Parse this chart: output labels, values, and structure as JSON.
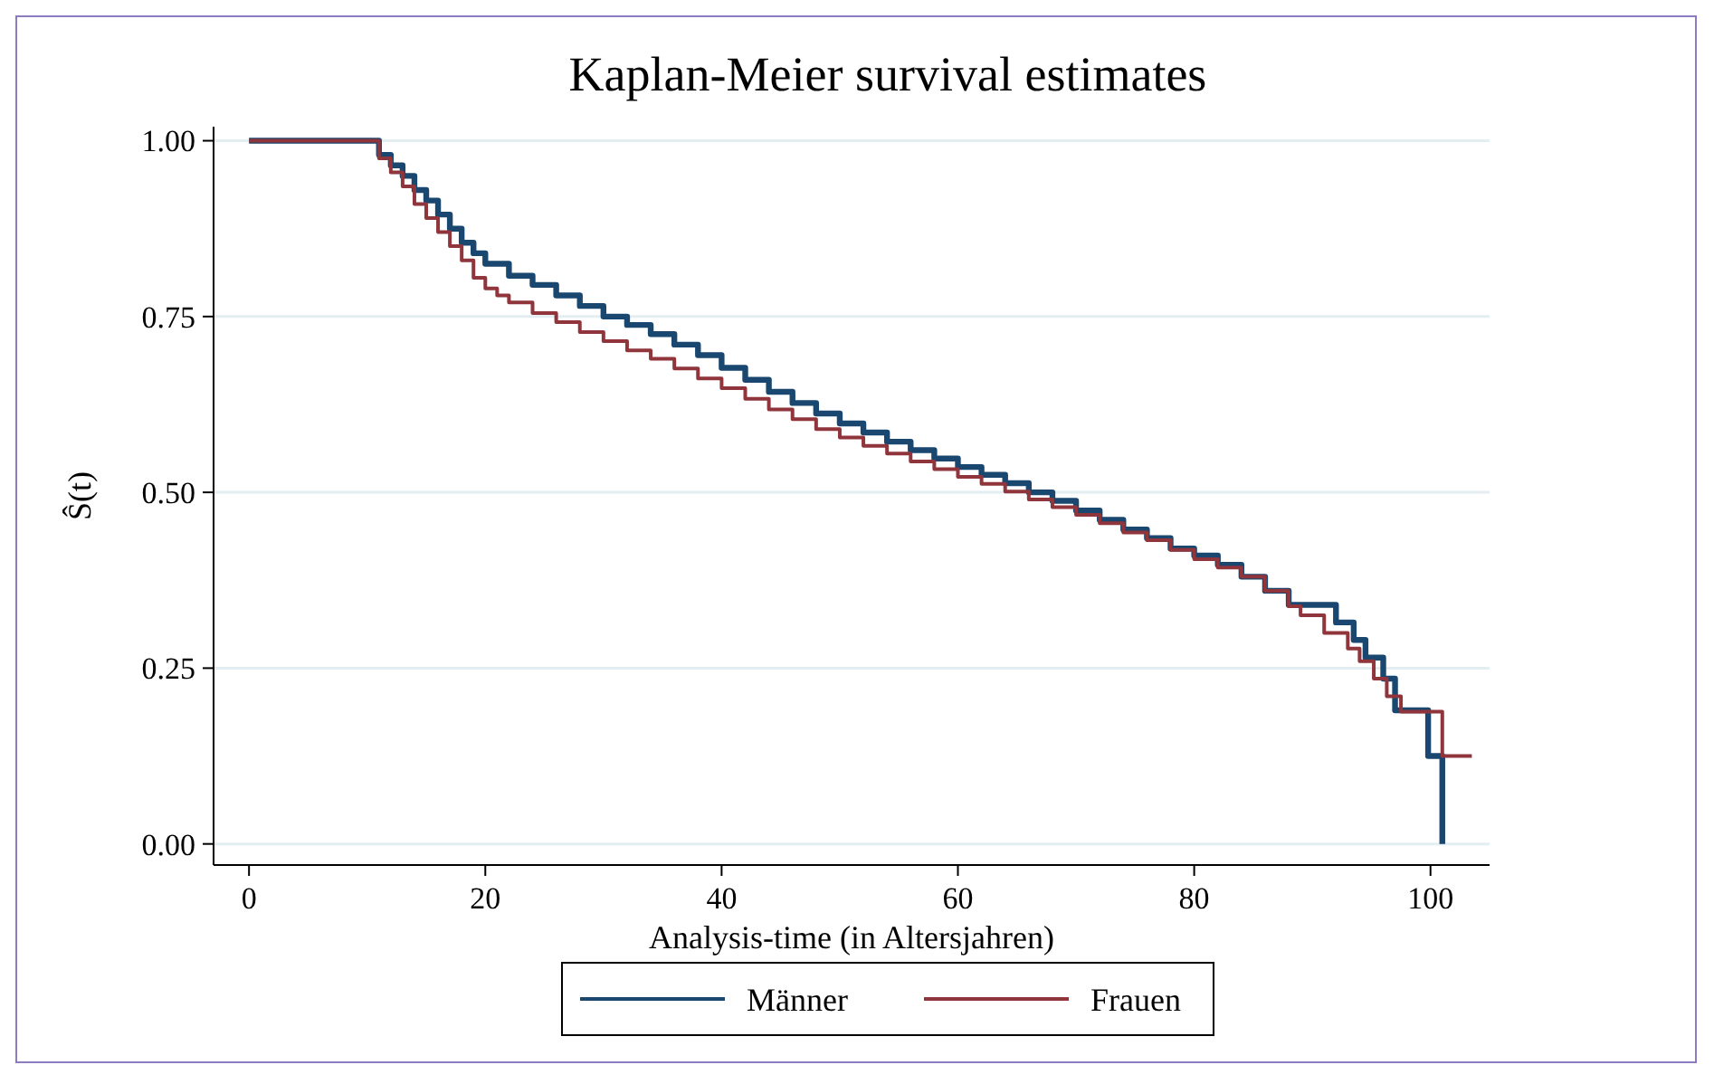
{
  "chart_data": {
    "type": "step",
    "title": "Kaplan-Meier survival estimates",
    "xlabel": "Analysis-time (in Altersjahren)",
    "ylabel": "Ŝ(t)",
    "xlim": [
      -3,
      105
    ],
    "ylim": [
      -0.03,
      1.02
    ],
    "xticks": [
      0,
      20,
      40,
      60,
      80,
      100
    ],
    "yticks": [
      {
        "value": 0,
        "label": "0.00"
      },
      {
        "value": 0.25,
        "label": "0.25"
      },
      {
        "value": 0.5,
        "label": "0.50"
      },
      {
        "value": 0.75,
        "label": "0.75"
      },
      {
        "value": 1,
        "label": "1.00"
      }
    ],
    "grid": "y",
    "legend": "bottom",
    "line_style": "solid",
    "marker": "none",
    "series": [
      {
        "name": "Männer",
        "color": "#1a476f",
        "x": [
          0,
          10,
          11,
          12,
          13,
          14,
          15,
          16,
          17,
          18,
          19,
          20,
          22,
          24,
          26,
          28,
          30,
          32,
          34,
          36,
          38,
          40,
          42,
          44,
          46,
          48,
          50,
          52,
          54,
          56,
          58,
          60,
          62,
          64,
          66,
          68,
          70,
          72,
          74,
          76,
          78,
          80,
          82,
          84,
          86,
          88,
          92,
          93.5,
          94.5,
          96,
          97,
          99.8,
          101
        ],
        "values": [
          1,
          1,
          0.98,
          0.965,
          0.95,
          0.93,
          0.915,
          0.895,
          0.875,
          0.855,
          0.84,
          0.825,
          0.808,
          0.795,
          0.78,
          0.765,
          0.75,
          0.738,
          0.725,
          0.71,
          0.695,
          0.677,
          0.66,
          0.643,
          0.627,
          0.612,
          0.598,
          0.585,
          0.572,
          0.56,
          0.548,
          0.536,
          0.525,
          0.513,
          0.5,
          0.488,
          0.474,
          0.461,
          0.447,
          0.435,
          0.42,
          0.41,
          0.397,
          0.38,
          0.36,
          0.34,
          0.315,
          0.29,
          0.265,
          0.235,
          0.19,
          0.125,
          0
        ]
      },
      {
        "name": "Frauen",
        "color": "#90353b",
        "x": [
          0,
          10,
          11,
          12,
          13,
          14,
          15,
          16,
          17,
          18,
          19,
          20,
          21,
          22,
          24,
          26,
          28,
          30,
          32,
          34,
          36,
          38,
          40,
          42,
          44,
          46,
          48,
          50,
          52,
          54,
          56,
          58,
          60,
          62,
          64,
          66,
          68,
          70,
          72,
          74,
          76,
          78,
          80,
          82,
          84,
          86,
          88,
          89,
          91,
          93,
          94,
          95.2,
          96.3,
          97.5,
          101,
          103.5
        ],
        "values": [
          1,
          1,
          0.975,
          0.955,
          0.935,
          0.91,
          0.89,
          0.87,
          0.85,
          0.83,
          0.805,
          0.79,
          0.78,
          0.77,
          0.755,
          0.742,
          0.728,
          0.715,
          0.702,
          0.69,
          0.676,
          0.662,
          0.648,
          0.633,
          0.618,
          0.604,
          0.59,
          0.578,
          0.566,
          0.555,
          0.544,
          0.533,
          0.522,
          0.512,
          0.501,
          0.49,
          0.479,
          0.468,
          0.456,
          0.443,
          0.432,
          0.418,
          0.405,
          0.393,
          0.38,
          0.36,
          0.338,
          0.325,
          0.3,
          0.278,
          0.26,
          0.235,
          0.21,
          0.188,
          0.125,
          0.125
        ]
      }
    ]
  }
}
